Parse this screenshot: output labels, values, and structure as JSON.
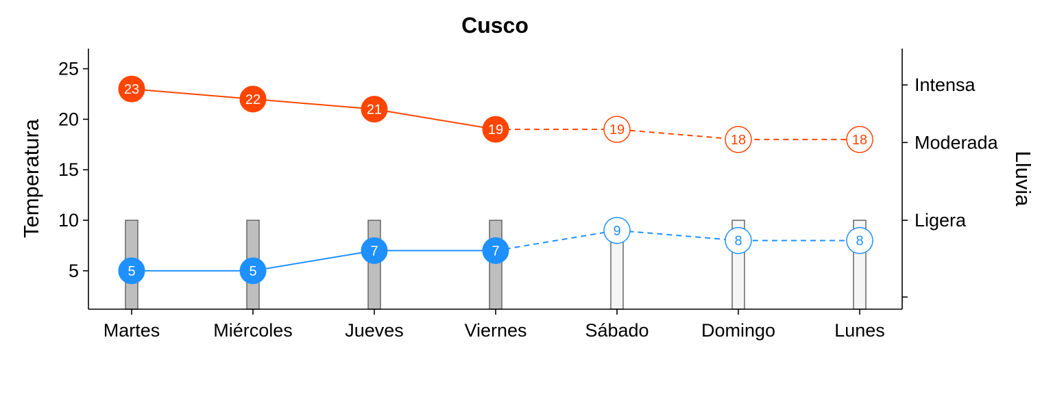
{
  "chart_data": {
    "type": "line",
    "title": "Cusco",
    "ylabel": "Temperatura",
    "y2label": "Lluvia",
    "categories": [
      "Martes",
      "Miércoles",
      "Jueves",
      "Viernes",
      "Sábado",
      "Domingo",
      "Lunes"
    ],
    "ylim": [
      1.2,
      27
    ],
    "yticks": [
      5,
      10,
      15,
      20,
      25
    ],
    "y2ticks": [
      {
        "label": "Intensa",
        "value": 23.4
      },
      {
        "label": "Moderada",
        "value": 17.7
      },
      {
        "label": "Ligera",
        "value": 10.0
      },
      {
        "label": "",
        "value": 2.4
      }
    ],
    "observed_until_index": 3,
    "series": [
      {
        "values": [
          23,
          22,
          21,
          19,
          19,
          18,
          18
        ],
        "color": "#FF4500"
      },
      {
        "values": [
          5,
          5,
          7,
          7,
          9,
          8,
          8
        ],
        "color": "#1E90FF"
      }
    ],
    "rain_bars": {
      "values": [
        10,
        10,
        10,
        10,
        10,
        10,
        10
      ],
      "observed_color": "#BEBEBE",
      "forecast_color": "#F5F5F5",
      "border_color": "#666666"
    },
    "grid": false,
    "legend": "none"
  }
}
